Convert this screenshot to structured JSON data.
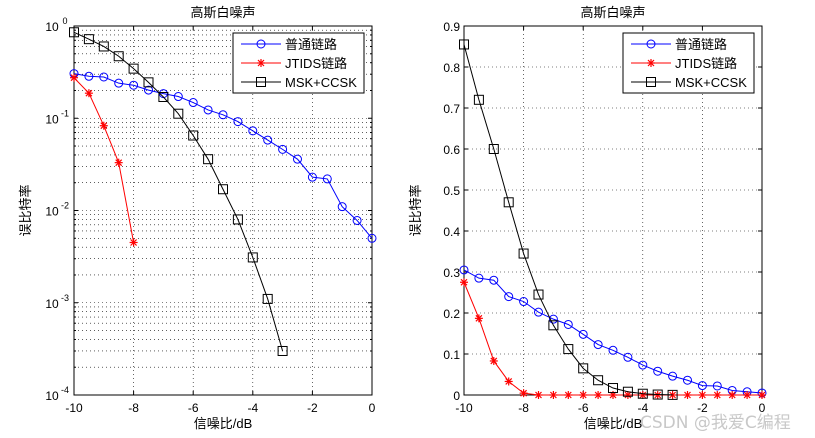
{
  "chart_data": [
    {
      "type": "line",
      "title": "高斯白噪声",
      "xlabel": "信噪比/dB",
      "ylabel": "误比特率",
      "yscale": "log",
      "xlim": [
        -10,
        0
      ],
      "ylim": [
        0.0001,
        1
      ],
      "xticks": [
        "-10",
        "-8",
        "-6",
        "-4",
        "-2",
        "0"
      ],
      "yticks": [
        {
          "base": "10",
          "exp": "-4"
        },
        {
          "base": "10",
          "exp": "-3"
        },
        {
          "base": "10",
          "exp": "-2"
        },
        {
          "base": "10",
          "exp": "-1"
        },
        {
          "base": "10",
          "exp": "0"
        }
      ],
      "grid": true,
      "legend_position": "top-right",
      "x": [
        -10,
        -9.5,
        -9,
        -8.5,
        -8,
        -7.5,
        -7,
        -6.5,
        -6,
        -5.5,
        -5,
        -4.5,
        -4,
        -3.5,
        -3,
        -2.5,
        -2,
        -1.5,
        -1,
        -0.5,
        0
      ],
      "series": [
        {
          "name": "普通链路",
          "color": "#0000ff",
          "marker": "circle",
          "values": [
            0.305,
            0.285,
            0.28,
            0.24,
            0.228,
            0.202,
            0.185,
            0.172,
            0.148,
            0.123,
            0.109,
            0.092,
            0.073,
            0.058,
            0.046,
            0.036,
            0.023,
            0.022,
            0.011,
            0.0078,
            0.005
          ]
        },
        {
          "name": "JTIDS链路",
          "color": "#ff0000",
          "marker": "star",
          "values": [
            0.275,
            0.187,
            0.083,
            0.033,
            0.0045,
            0,
            0,
            0,
            0,
            0,
            0,
            0,
            0,
            0,
            0,
            0,
            0,
            0,
            0,
            0,
            0
          ]
        },
        {
          "name": "MSK+CCSK",
          "color": "#000000",
          "marker": "square",
          "values": [
            0.855,
            0.72,
            0.6,
            0.47,
            0.345,
            0.245,
            0.17,
            0.112,
            0.065,
            0.036,
            0.017,
            0.008,
            0.0031,
            0.0011,
            0.0003,
            null,
            null,
            null,
            null,
            null,
            null
          ]
        }
      ]
    },
    {
      "type": "line",
      "title": "高斯白噪声",
      "xlabel": "信噪比/dB",
      "ylabel": "误比特率",
      "yscale": "linear",
      "xlim": [
        -10,
        0
      ],
      "ylim": [
        0,
        0.9
      ],
      "xticks": [
        "-10",
        "-8",
        "-6",
        "-4",
        "-2",
        "0"
      ],
      "yticks": [
        "0",
        "0.1",
        "0.2",
        "0.3",
        "0.4",
        "0.5",
        "0.6",
        "0.7",
        "0.8",
        "0.9"
      ],
      "grid": true,
      "legend_position": "top-right",
      "x": [
        -10,
        -9.5,
        -9,
        -8.5,
        -8,
        -7.5,
        -7,
        -6.5,
        -6,
        -5.5,
        -5,
        -4.5,
        -4,
        -3.5,
        -3,
        -2.5,
        -2,
        -1.5,
        -1,
        -0.5,
        0
      ],
      "series": [
        {
          "name": "普通链路",
          "color": "#0000ff",
          "marker": "circle",
          "values": [
            0.305,
            0.285,
            0.28,
            0.24,
            0.228,
            0.202,
            0.185,
            0.172,
            0.148,
            0.123,
            0.109,
            0.092,
            0.073,
            0.058,
            0.046,
            0.036,
            0.023,
            0.022,
            0.011,
            0.0078,
            0.005
          ]
        },
        {
          "name": "JTIDS链路",
          "color": "#ff0000",
          "marker": "star",
          "values": [
            0.275,
            0.187,
            0.083,
            0.033,
            0.0045,
            0,
            0,
            0,
            0,
            0,
            0,
            0,
            0,
            0,
            0,
            0,
            0,
            0,
            0,
            0,
            0
          ]
        },
        {
          "name": "MSK+CCSK",
          "color": "#000000",
          "marker": "square",
          "values": [
            0.855,
            0.72,
            0.6,
            0.47,
            0.345,
            0.245,
            0.17,
            0.112,
            0.065,
            0.036,
            0.017,
            0.008,
            0.0031,
            0.0011,
            0.0003,
            null,
            null,
            null,
            null,
            null,
            null
          ]
        }
      ]
    }
  ],
  "watermark": "CSDN @我爱C编程"
}
